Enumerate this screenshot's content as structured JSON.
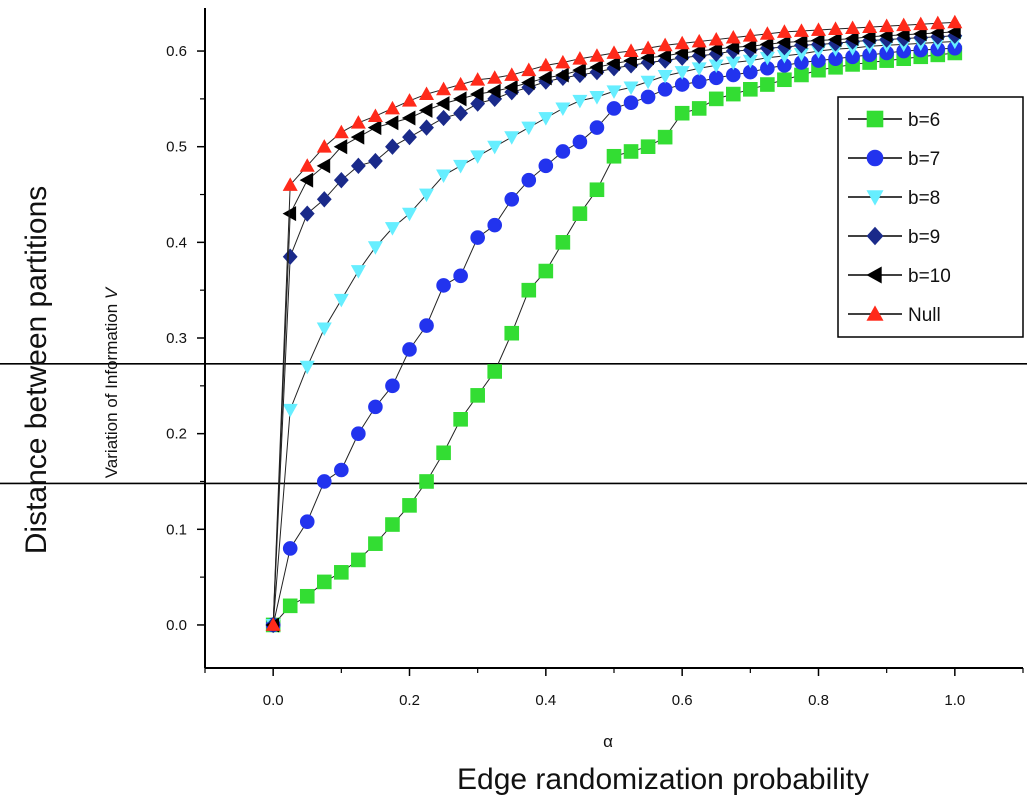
{
  "chart_data": {
    "type": "scatter",
    "xlabel": "α",
    "ylabel": "Variation of Information",
    "ylabel_symbol": "V",
    "outer_xlabel": "Edge randomization probability",
    "outer_ylabel": "Distance between partitions",
    "xlim": [
      -0.1,
      1.1
    ],
    "ylim": [
      -0.045,
      0.645
    ],
    "xticks": [
      "0.0",
      "0.2",
      "0.4",
      "0.6",
      "0.8",
      "1.0"
    ],
    "yticks": [
      "0.0",
      "0.1",
      "0.2",
      "0.3",
      "0.4",
      "0.5",
      "0.6"
    ],
    "xtick_values": [
      0.0,
      0.2,
      0.4,
      0.6,
      0.8,
      1.0
    ],
    "ytick_values": [
      0.0,
      0.1,
      0.2,
      0.3,
      0.4,
      0.5,
      0.6
    ],
    "hlines": [
      0.273,
      0.148
    ],
    "grid": false,
    "legend_position": "right",
    "x": [
      0.0,
      0.025,
      0.05,
      0.075,
      0.1,
      0.125,
      0.15,
      0.175,
      0.2,
      0.225,
      0.25,
      0.275,
      0.3,
      0.325,
      0.35,
      0.375,
      0.4,
      0.425,
      0.45,
      0.475,
      0.5,
      0.525,
      0.55,
      0.575,
      0.6,
      0.625,
      0.65,
      0.675,
      0.7,
      0.725,
      0.75,
      0.775,
      0.8,
      0.825,
      0.85,
      0.875,
      0.9,
      0.925,
      0.95,
      0.975,
      1.0
    ],
    "series": [
      {
        "name": "b=6",
        "color": "#33dd33",
        "marker": "square",
        "values": [
          0.0,
          0.02,
          0.03,
          0.045,
          0.055,
          0.068,
          0.085,
          0.105,
          0.125,
          0.15,
          0.18,
          0.215,
          0.24,
          0.265,
          0.305,
          0.35,
          0.37,
          0.4,
          0.43,
          0.455,
          0.49,
          0.495,
          0.5,
          0.51,
          0.535,
          0.54,
          0.55,
          0.555,
          0.56,
          0.565,
          0.57,
          0.575,
          0.58,
          0.583,
          0.586,
          0.588,
          0.59,
          0.592,
          0.594,
          0.596,
          0.598
        ]
      },
      {
        "name": "b=7",
        "color": "#2233ee",
        "marker": "circle",
        "values": [
          0.0,
          0.08,
          0.108,
          0.15,
          0.162,
          0.2,
          0.228,
          0.25,
          0.288,
          0.313,
          0.355,
          0.365,
          0.405,
          0.418,
          0.445,
          0.465,
          0.48,
          0.495,
          0.505,
          0.52,
          0.54,
          0.546,
          0.552,
          0.56,
          0.565,
          0.568,
          0.572,
          0.575,
          0.578,
          0.582,
          0.585,
          0.588,
          0.59,
          0.592,
          0.594,
          0.596,
          0.598,
          0.6,
          0.601,
          0.602,
          0.603
        ]
      },
      {
        "name": "b=8",
        "color": "#66eeff",
        "marker": "triangle-down",
        "values": [
          0.0,
          0.225,
          0.27,
          0.31,
          0.34,
          0.37,
          0.395,
          0.415,
          0.43,
          0.45,
          0.47,
          0.48,
          0.49,
          0.5,
          0.51,
          0.52,
          0.53,
          0.54,
          0.548,
          0.552,
          0.558,
          0.562,
          0.568,
          0.574,
          0.578,
          0.582,
          0.585,
          0.588,
          0.59,
          0.593,
          0.595,
          0.597,
          0.6,
          0.602,
          0.603,
          0.605,
          0.606,
          0.607,
          0.608,
          0.609,
          0.61
        ]
      },
      {
        "name": "b=9",
        "color": "#1a2a8a",
        "marker": "diamond",
        "values": [
          0.0,
          0.385,
          0.43,
          0.445,
          0.465,
          0.48,
          0.485,
          0.5,
          0.51,
          0.52,
          0.53,
          0.535,
          0.545,
          0.55,
          0.557,
          0.562,
          0.568,
          0.572,
          0.575,
          0.578,
          0.582,
          0.585,
          0.588,
          0.59,
          0.593,
          0.595,
          0.597,
          0.6,
          0.601,
          0.603,
          0.604,
          0.606,
          0.607,
          0.608,
          0.61,
          0.611,
          0.612,
          0.613,
          0.614,
          0.615,
          0.616
        ]
      },
      {
        "name": "b=10",
        "color": "#000000",
        "marker": "triangle-left",
        "values": [
          0.0,
          0.43,
          0.465,
          0.48,
          0.5,
          0.51,
          0.52,
          0.525,
          0.53,
          0.538,
          0.545,
          0.55,
          0.555,
          0.558,
          0.562,
          0.567,
          0.572,
          0.575,
          0.58,
          0.583,
          0.587,
          0.59,
          0.593,
          0.595,
          0.598,
          0.6,
          0.602,
          0.604,
          0.605,
          0.607,
          0.609,
          0.61,
          0.611,
          0.612,
          0.613,
          0.615,
          0.616,
          0.617,
          0.618,
          0.619,
          0.62
        ]
      },
      {
        "name": "Null",
        "color": "#ff2a1a",
        "marker": "triangle-up",
        "values": [
          0.0,
          0.46,
          0.48,
          0.5,
          0.515,
          0.525,
          0.532,
          0.54,
          0.548,
          0.555,
          0.56,
          0.565,
          0.57,
          0.572,
          0.575,
          0.58,
          0.585,
          0.588,
          0.592,
          0.595,
          0.598,
          0.6,
          0.603,
          0.606,
          0.608,
          0.61,
          0.612,
          0.614,
          0.616,
          0.618,
          0.62,
          0.621,
          0.622,
          0.623,
          0.624,
          0.625,
          0.626,
          0.627,
          0.628,
          0.629,
          0.63
        ]
      }
    ]
  }
}
